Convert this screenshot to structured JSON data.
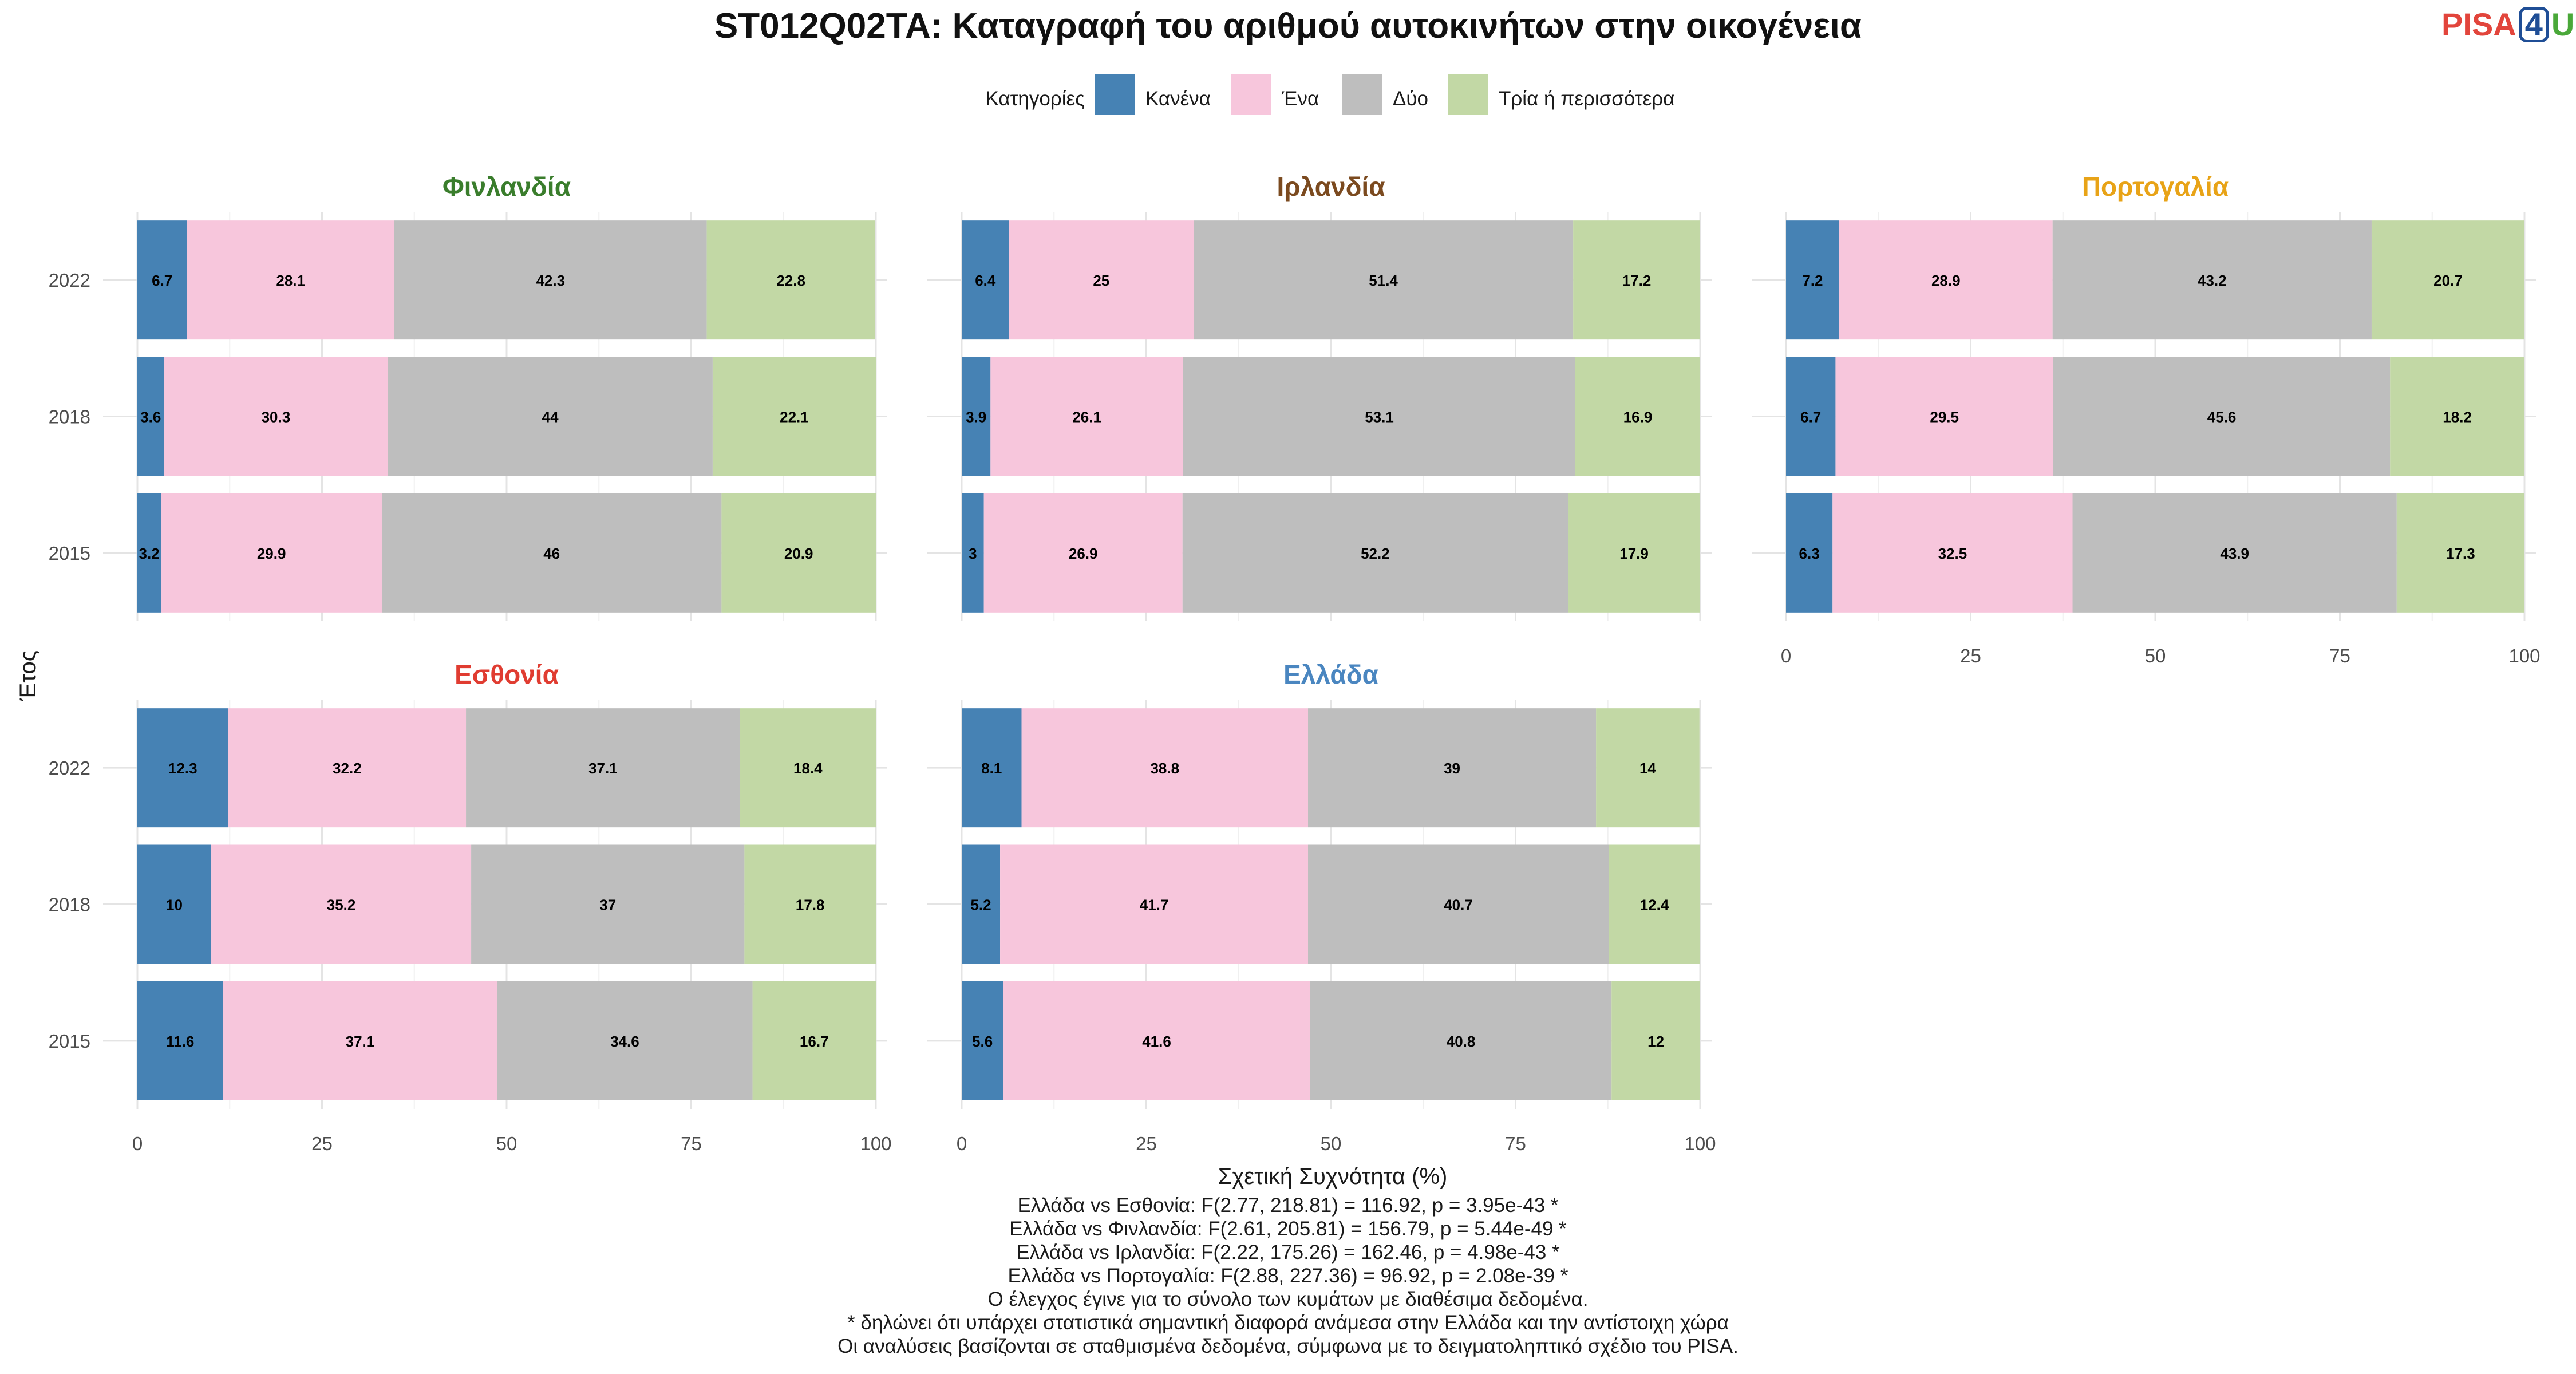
{
  "logo": {
    "part1": "PISA",
    "part2": "4",
    "part3": "U"
  },
  "notes": [
    "Ελλάδα vs Εσθονία: F(2.77, 218.81) = 116.92, p = 3.95e-43 *",
    "Ελλάδα vs Φινλανδία: F(2.61, 205.81) = 156.79, p = 5.44e-49 *",
    "Ελλάδα vs Ιρλανδία: F(2.22, 175.26) = 162.46, p = 4.98e-43 *",
    "Ελλάδα vs Πορτογαλία: F(2.88, 227.36) = 96.92, p = 2.08e-39 *",
    "Ο έλεγχος έγινε για το σύνολο των κυμάτων με διαθέσιμα δεδομένα.",
    "* δηλώνει ότι υπάρχει στατιστικά σημαντική διαφορά ανάμεσα στην Ελλάδα και την αντίστοιχη χώρα",
    "Οι αναλύσεις βασίζονται σε σταθμισμένα δεδομένα, σύμφωνα με το δειγματοληπτικό σχέδιο του PISA."
  ],
  "chart_data": {
    "type": "bar",
    "orientation": "horizontal-stacked",
    "title": "ST012Q02TA: Καταγραφή του αριθμού αυτοκινήτων στην οικογένεια",
    "xlabel": "Σχετική Συχνότητα (%)",
    "ylabel": "Έτος",
    "xlim": [
      0,
      100
    ],
    "xticks": [
      0,
      25,
      50,
      75,
      100
    ],
    "categories": [
      "2022",
      "2018",
      "2015"
    ],
    "grid": true,
    "legend": {
      "title": "Κατηγορίες",
      "placement": "top",
      "entries": [
        {
          "name": "Κανένα",
          "color": "#4682b4"
        },
        {
          "name": "Ένα",
          "color": "#f7c6dc"
        },
        {
          "name": "Δύο",
          "color": "#bebebe"
        },
        {
          "name": "Τρία ή περισσότερα",
          "color": "#c2d8a5"
        }
      ]
    },
    "panels": [
      {
        "name": "Φινλανδία",
        "title_color": "#3a7d2c",
        "series": [
          {
            "name": "Κανένα",
            "values": [
              6.7,
              3.6,
              3.2
            ]
          },
          {
            "name": "Ένα",
            "values": [
              28.1,
              30.3,
              29.9
            ]
          },
          {
            "name": "Δύο",
            "values": [
              42.3,
              44,
              46
            ]
          },
          {
            "name": "Τρία ή περισσότερα",
            "values": [
              22.8,
              22.1,
              20.9
            ]
          }
        ]
      },
      {
        "name": "Ιρλανδία",
        "title_color": "#7b4a1f",
        "series": [
          {
            "name": "Κανένα",
            "values": [
              6.4,
              3.9,
              3
            ]
          },
          {
            "name": "Ένα",
            "values": [
              25,
              26.1,
              26.9
            ]
          },
          {
            "name": "Δύο",
            "values": [
              51.4,
              53.1,
              52.2
            ]
          },
          {
            "name": "Τρία ή περισσότερα",
            "values": [
              17.2,
              16.9,
              17.9
            ]
          }
        ]
      },
      {
        "name": "Πορτογαλία",
        "title_color": "#e8a317",
        "series": [
          {
            "name": "Κανένα",
            "values": [
              7.2,
              6.7,
              6.3
            ]
          },
          {
            "name": "Ένα",
            "values": [
              28.9,
              29.5,
              32.5
            ]
          },
          {
            "name": "Δύο",
            "values": [
              43.2,
              45.6,
              43.9
            ]
          },
          {
            "name": "Τρία ή περισσότερα",
            "values": [
              20.7,
              18.2,
              17.3
            ]
          }
        ]
      },
      {
        "name": "Εσθονία",
        "title_color": "#e03c31",
        "series": [
          {
            "name": "Κανένα",
            "values": [
              12.3,
              10,
              11.6
            ]
          },
          {
            "name": "Ένα",
            "values": [
              32.2,
              35.2,
              37.1
            ]
          },
          {
            "name": "Δύο",
            "values": [
              37.1,
              37,
              34.6
            ]
          },
          {
            "name": "Τρία ή περισσότερα",
            "values": [
              18.4,
              17.8,
              16.7
            ]
          }
        ]
      },
      {
        "name": "Ελλάδα",
        "title_color": "#4a86c0",
        "series": [
          {
            "name": "Κανένα",
            "values": [
              8.1,
              5.2,
              5.6
            ]
          },
          {
            "name": "Ένα",
            "values": [
              38.8,
              41.7,
              41.6
            ]
          },
          {
            "name": "Δύο",
            "values": [
              39,
              40.7,
              40.8
            ]
          },
          {
            "name": "Τρία ή περισσότερα",
            "values": [
              14,
              12.4,
              12
            ]
          }
        ]
      }
    ]
  }
}
